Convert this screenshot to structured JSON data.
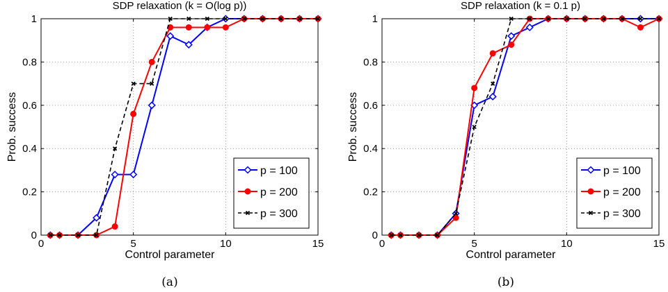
{
  "chart_data": [
    {
      "type": "line",
      "title": "SDP relaxation (k = O(log p))",
      "xlabel": "Control parameter",
      "ylabel": "Prob. success",
      "caption": "(a)",
      "xlim": [
        0,
        15
      ],
      "ylim": [
        0,
        1
      ],
      "xticks": [
        "0",
        "5",
        "10",
        "15"
      ],
      "yticks": [
        "0",
        "0.2",
        "0.4",
        "0.6",
        "0.8",
        "1"
      ],
      "grid": true,
      "legend_position": "bottom-right",
      "x": [
        0.5,
        1,
        2,
        3,
        4,
        5,
        6,
        7,
        8,
        9,
        10,
        11,
        12,
        13,
        14,
        15
      ],
      "series": [
        {
          "name": "p = 100",
          "color": "#0000ff",
          "marker": "diamond",
          "dash": "solid",
          "values": [
            0,
            0,
            0,
            0.08,
            0.28,
            0.28,
            0.6,
            0.92,
            0.88,
            0.96,
            1,
            1,
            1,
            1,
            1,
            1
          ]
        },
        {
          "name": "p = 200",
          "color": "#ff0000",
          "marker": "circle",
          "dash": "solid",
          "values": [
            0,
            0,
            0,
            0,
            0.04,
            0.56,
            0.8,
            0.96,
            0.96,
            0.96,
            0.96,
            1,
            1,
            1,
            1,
            1
          ]
        },
        {
          "name": "p = 300",
          "color": "#000000",
          "marker": "x",
          "dash": "dashed",
          "values": [
            0,
            0,
            0,
            0,
            0.4,
            0.7,
            0.7,
            1,
            1,
            1,
            1,
            1,
            1,
            1,
            1,
            1
          ]
        }
      ]
    },
    {
      "type": "line",
      "title": "SDP relaxation (k = 0.1 p)",
      "xlabel": "Control parameter",
      "ylabel": "Prob. success",
      "caption": "(b)",
      "xlim": [
        0,
        15
      ],
      "ylim": [
        0,
        1
      ],
      "xticks": [
        "0",
        "5",
        "10",
        "15"
      ],
      "yticks": [
        "0",
        "0.2",
        "0.4",
        "0.6",
        "0.8",
        "1"
      ],
      "grid": true,
      "legend_position": "bottom-right",
      "x": [
        0.5,
        1,
        2,
        3,
        4,
        5,
        6,
        7,
        8,
        9,
        10,
        11,
        12,
        13,
        14,
        15
      ],
      "series": [
        {
          "name": "p = 100",
          "color": "#0000ff",
          "marker": "diamond",
          "dash": "solid",
          "values": [
            0,
            0,
            0,
            0,
            0.1,
            0.6,
            0.64,
            0.92,
            0.96,
            1,
            1,
            1,
            1,
            1,
            1,
            1
          ]
        },
        {
          "name": "p = 200",
          "color": "#ff0000",
          "marker": "circle",
          "dash": "solid",
          "values": [
            0,
            0,
            0,
            0,
            0.08,
            0.68,
            0.84,
            0.88,
            1,
            1,
            1,
            1,
            1,
            1,
            0.96,
            1
          ]
        },
        {
          "name": "p = 300",
          "color": "#000000",
          "marker": "x",
          "dash": "dashed",
          "values": [
            0,
            0,
            0,
            0,
            0.1,
            0.5,
            0.7,
            1,
            1,
            1,
            1,
            1,
            1,
            1,
            1,
            1
          ]
        }
      ]
    }
  ]
}
